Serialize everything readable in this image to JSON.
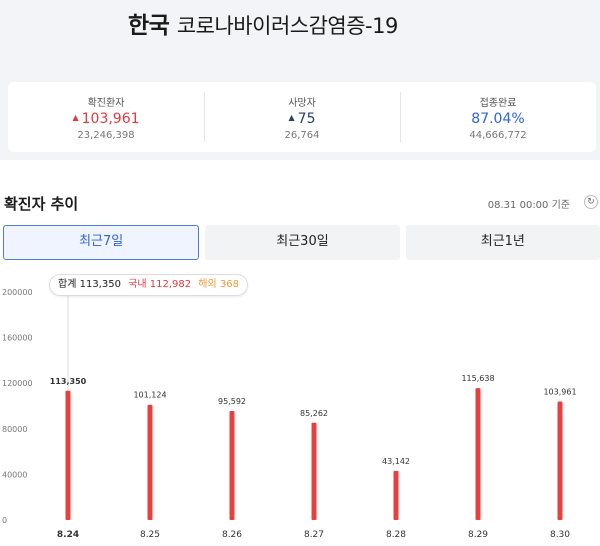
{
  "header": {
    "title_main": "한국",
    "title_rest": "코로나바이러스감염증-19"
  },
  "stats": [
    {
      "label": "확진환자",
      "value": "103,961",
      "sub": "23,246,398",
      "trend": "up",
      "color": "#e03a3e"
    },
    {
      "label": "사망자",
      "value": "75",
      "sub": "26,764",
      "trend": "up",
      "color": "#2c3e6b"
    },
    {
      "label": "접종완료",
      "value": "87.04%",
      "sub": "44,666,772",
      "trend": "none",
      "color": "#2f64d8"
    }
  ],
  "section": {
    "title": "확진자 추이",
    "updated": "08.31 00:00 기준",
    "refresh_icon": "refresh-icon"
  },
  "tabs": [
    {
      "label": "최근7일",
      "active": true
    },
    {
      "label": "최근30일",
      "active": false
    },
    {
      "label": "최근1년",
      "active": false
    }
  ],
  "tooltip": {
    "total_label": "합계",
    "total_value": "113,350",
    "domestic_label": "국내",
    "domestic_value": "112,982",
    "overseas_label": "해외",
    "overseas_value": "368"
  },
  "chart_data": {
    "type": "bar",
    "categories": [
      "8.24",
      "8.25",
      "8.26",
      "8.27",
      "8.28",
      "8.29",
      "8.30"
    ],
    "values": [
      113350,
      101124,
      95592,
      85262,
      43142,
      115638,
      103961
    ],
    "value_labels": [
      "113,350",
      "101,124",
      "95,592",
      "85,262",
      "43,142",
      "115,638",
      "103,961"
    ],
    "yticks": [
      "200000",
      "160000",
      "120000",
      "80000",
      "40000",
      "0"
    ],
    "ylim": [
      0,
      200000
    ],
    "highlight_index": 0,
    "bar_color": "#e8403f",
    "grid": false
  }
}
